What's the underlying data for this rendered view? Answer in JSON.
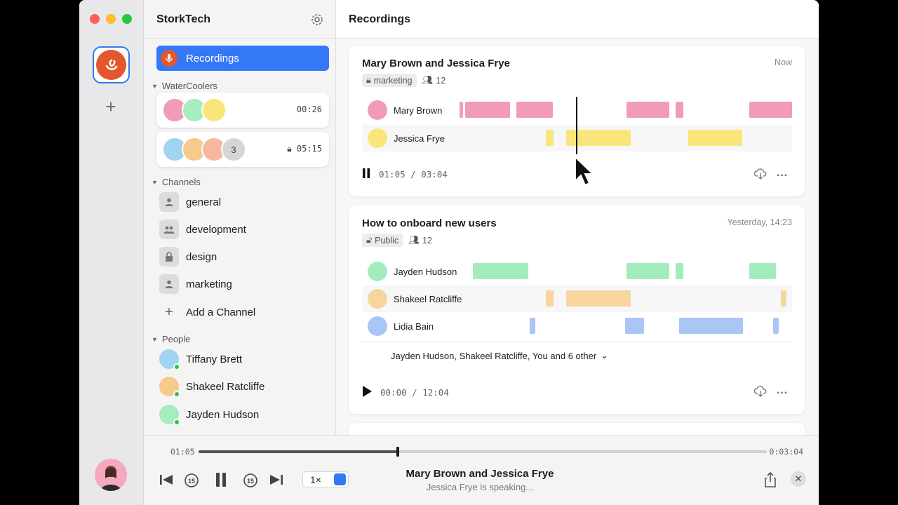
{
  "workspace": {
    "name": "StorkTech"
  },
  "sidebar": {
    "recordings_label": "Recordings",
    "watercoolers_label": "WaterCoolers",
    "watercoolers": [
      {
        "time": "00:26",
        "locked": false,
        "extra": ""
      },
      {
        "time": "05:15",
        "locked": true,
        "extra": "3"
      }
    ],
    "channels_label": "Channels",
    "channels": [
      {
        "label": "general",
        "icon": "person-icon"
      },
      {
        "label": "development",
        "icon": "people-icon"
      },
      {
        "label": "design",
        "icon": "lock-icon"
      },
      {
        "label": "marketing",
        "icon": "person-icon"
      }
    ],
    "add_channel_label": "Add a Channel",
    "people_label": "People",
    "people": [
      {
        "name": "Tiffany Brett",
        "color": "#9fd4f2",
        "online": true
      },
      {
        "name": "Shakeel Ratcliffe",
        "color": "#f6c98c",
        "online": true
      },
      {
        "name": "Jayden Hudson",
        "color": "#a7ecbf",
        "online": true
      }
    ]
  },
  "main": {
    "title": "Recordings",
    "cards": [
      {
        "title": "Mary Brown and Jessica Frye",
        "time": "Now",
        "tag": "marketing",
        "count": "12",
        "tracks": [
          {
            "name": "Mary Brown",
            "color": "#f29bb8"
          },
          {
            "name": "Jessica Frye",
            "color": "#fae57a"
          }
        ],
        "position": "01:05",
        "duration": "03:04"
      },
      {
        "title": "How to onboard new users",
        "time": "Yesterday, 14:23",
        "tag": "Public",
        "count": "12",
        "tracks": [
          {
            "name": "Jayden Hudson",
            "color": "#a4ecbd"
          },
          {
            "name": "Shakeel Ratcliffe",
            "color": "#f7d59e"
          },
          {
            "name": "Lidia Bain",
            "color": "#a9c6f5"
          }
        ],
        "others": "Jayden Hudson, Shakeel Ratcliffe, You and 6 other",
        "position": "00:00",
        "duration": "12:04"
      }
    ]
  },
  "player": {
    "elapsed": "01:05",
    "total": "0:03:04",
    "progress": 0.35,
    "speed": "1×",
    "title": "Mary Brown and Jessica Frye",
    "subtitle": "Jessica Frye is speaking..."
  },
  "colors": {
    "accent": "#3478f6",
    "brand": "#e4572e"
  }
}
